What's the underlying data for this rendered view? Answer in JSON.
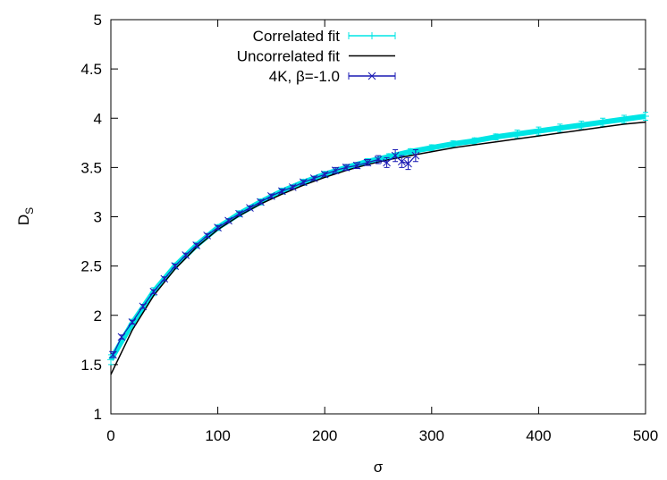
{
  "chart_data": {
    "type": "errorbar",
    "xlabel": "σ",
    "ylabel": "D",
    "ylabel_sub": "S",
    "xlim": [
      0,
      500
    ],
    "ylim": [
      1,
      5
    ],
    "xticks": [
      0,
      100,
      200,
      300,
      400,
      500
    ],
    "yticks": [
      1,
      1.5,
      2,
      2.5,
      3,
      3.5,
      4,
      4.5,
      5
    ],
    "legend": "top-left",
    "series": [
      {
        "name": "Correlated fit",
        "color": "#00e5e5",
        "marker": "plus",
        "x": [
          0,
          20,
          40,
          60,
          80,
          100,
          120,
          140,
          160,
          180,
          200,
          220,
          240,
          260,
          280,
          300,
          320,
          340,
          360,
          380,
          400,
          420,
          440,
          460,
          480,
          500
        ],
        "values": [
          1.55,
          1.92,
          2.24,
          2.5,
          2.71,
          2.89,
          3.03,
          3.15,
          3.26,
          3.35,
          3.43,
          3.5,
          3.56,
          3.61,
          3.66,
          3.7,
          3.74,
          3.77,
          3.81,
          3.84,
          3.87,
          3.9,
          3.93,
          3.96,
          3.99,
          4.02
        ],
        "errors": [
          0.05,
          0.04,
          0.04,
          0.03,
          0.03,
          0.03,
          0.03,
          0.03,
          0.03,
          0.03,
          0.03,
          0.03,
          0.03,
          0.03,
          0.03,
          0.03,
          0.03,
          0.03,
          0.03,
          0.04,
          0.04,
          0.04,
          0.04,
          0.04,
          0.04,
          0.04
        ]
      },
      {
        "name": "Uncorrelated fit",
        "color": "#000000",
        "marker": "none",
        "x": [
          0,
          20,
          40,
          60,
          80,
          100,
          120,
          140,
          160,
          180,
          200,
          220,
          240,
          260,
          280,
          300,
          320,
          340,
          360,
          380,
          400,
          420,
          440,
          460,
          480,
          500
        ],
        "values": [
          1.4,
          1.85,
          2.2,
          2.47,
          2.69,
          2.87,
          3.01,
          3.13,
          3.23,
          3.32,
          3.4,
          3.47,
          3.53,
          3.58,
          3.62,
          3.66,
          3.7,
          3.73,
          3.76,
          3.79,
          3.82,
          3.85,
          3.88,
          3.91,
          3.94,
          3.96
        ]
      },
      {
        "name": "4K, β=-1.0",
        "color": "#1a1ab4",
        "marker": "cross",
        "x": [
          2,
          10,
          20,
          30,
          40,
          50,
          60,
          70,
          80,
          90,
          100,
          110,
          120,
          130,
          140,
          150,
          160,
          170,
          180,
          190,
          200,
          210,
          220,
          230,
          240,
          250,
          258,
          266,
          272,
          278,
          285
        ],
        "values": [
          1.6,
          1.78,
          1.93,
          2.09,
          2.24,
          2.37,
          2.5,
          2.61,
          2.71,
          2.81,
          2.89,
          2.96,
          3.03,
          3.09,
          3.15,
          3.21,
          3.26,
          3.3,
          3.35,
          3.39,
          3.43,
          3.47,
          3.5,
          3.52,
          3.55,
          3.58,
          3.55,
          3.62,
          3.56,
          3.54,
          3.62
        ],
        "errors": [
          0.03,
          0.02,
          0.02,
          0.02,
          0.02,
          0.02,
          0.02,
          0.02,
          0.02,
          0.02,
          0.02,
          0.02,
          0.02,
          0.02,
          0.02,
          0.02,
          0.02,
          0.02,
          0.02,
          0.02,
          0.02,
          0.03,
          0.03,
          0.03,
          0.03,
          0.04,
          0.05,
          0.06,
          0.06,
          0.06,
          0.06
        ]
      }
    ]
  }
}
